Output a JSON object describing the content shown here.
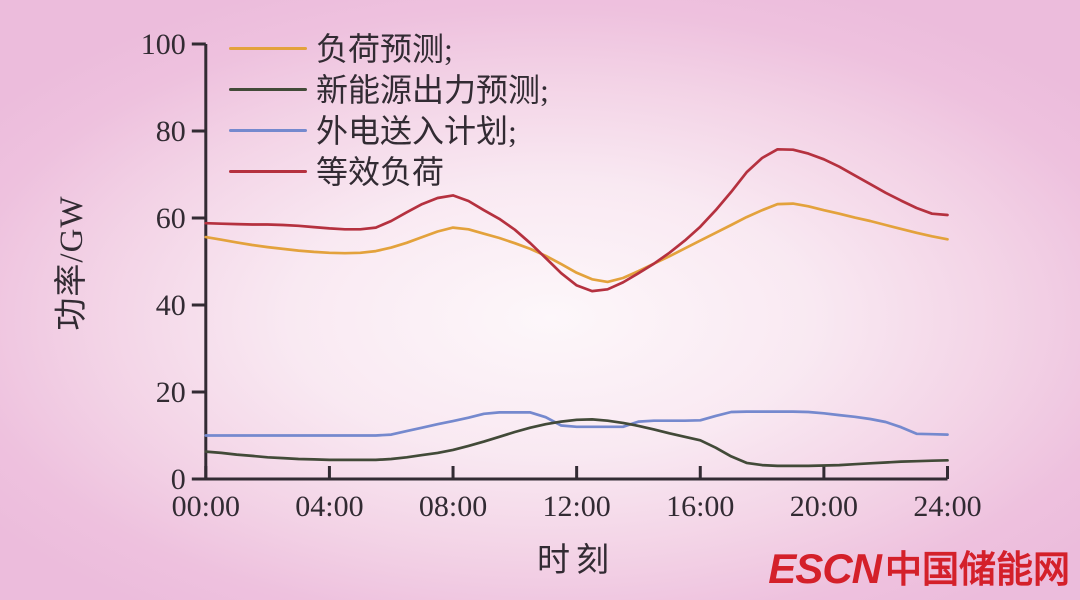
{
  "logo": {
    "latin": "ESCN",
    "cjk": "中国储能网",
    "color": "#d4202a"
  },
  "colors": {
    "background_edge": "#ecbcdc",
    "background_center": "#fdf7fa",
    "axis": "#322b33",
    "text": "#322b33"
  },
  "chart_data": {
    "type": "line",
    "title": "",
    "xlabel": "时刻",
    "ylabel": "功率/GW",
    "xlim": [
      0,
      24
    ],
    "ylim": [
      0,
      100
    ],
    "grid": false,
    "legend_position": "upper-left-inside",
    "yticks": [
      0,
      20,
      40,
      60,
      80,
      100
    ],
    "xticks": [
      {
        "t": 0,
        "label": "00:00"
      },
      {
        "t": 4,
        "label": "04:00"
      },
      {
        "t": 8,
        "label": "08:00"
      },
      {
        "t": 12,
        "label": "12:00"
      },
      {
        "t": 16,
        "label": "16:00"
      },
      {
        "t": 20,
        "label": "20:00"
      },
      {
        "t": 24,
        "label": "24:00"
      }
    ],
    "x_hours": [
      0,
      0.5,
      1,
      1.5,
      2,
      2.5,
      3,
      3.5,
      4,
      4.5,
      5,
      5.5,
      6,
      6.5,
      7,
      7.5,
      8,
      8.5,
      9,
      9.5,
      10,
      10.5,
      11,
      11.5,
      12,
      12.5,
      13,
      13.5,
      14,
      14.5,
      15,
      15.5,
      16,
      16.5,
      17,
      17.5,
      18,
      18.5,
      19,
      19.5,
      20,
      20.5,
      21,
      21.5,
      22,
      22.5,
      23,
      23.5,
      24
    ],
    "z_order": [
      0,
      2,
      1,
      3
    ],
    "series": [
      {
        "name": "load-forecast",
        "label": "负荷预测;",
        "color": "#e3a23c",
        "values": [
          55.6,
          55.0,
          54.4,
          53.8,
          53.3,
          52.9,
          52.5,
          52.2,
          52.0,
          51.9,
          52.0,
          52.4,
          53.2,
          54.3,
          55.6,
          56.9,
          57.8,
          57.4,
          56.4,
          55.4,
          54.2,
          52.9,
          51.3,
          49.4,
          47.4,
          45.9,
          45.3,
          46.2,
          47.8,
          49.5,
          51.2,
          53.0,
          54.8,
          56.6,
          58.4,
          60.2,
          61.8,
          63.2,
          63.3,
          62.7,
          61.8,
          61.0,
          60.1,
          59.3,
          58.4,
          57.5,
          56.6,
          55.8,
          55.1
        ]
      },
      {
        "name": "renewable-output-forecast",
        "label": "新能源出力预测;",
        "color": "#424a38",
        "values": [
          6.3,
          6.0,
          5.6,
          5.3,
          5.0,
          4.8,
          4.6,
          4.5,
          4.4,
          4.4,
          4.4,
          4.4,
          4.6,
          5.0,
          5.5,
          6.0,
          6.7,
          7.6,
          8.6,
          9.7,
          10.8,
          11.8,
          12.6,
          13.2,
          13.6,
          13.7,
          13.4,
          12.9,
          12.2,
          11.4,
          10.5,
          9.7,
          8.9,
          7.2,
          5.2,
          3.7,
          3.2,
          3.0,
          3.0,
          3.0,
          3.1,
          3.2,
          3.4,
          3.6,
          3.8,
          4.0,
          4.1,
          4.2,
          4.3
        ]
      },
      {
        "name": "external-power-import-plan",
        "label": "外电送入计划;",
        "color": "#7589ce",
        "values": [
          10.0,
          10.0,
          10.0,
          10.0,
          10.0,
          10.0,
          10.0,
          10.0,
          10.0,
          10.0,
          10.0,
          10.0,
          10.2,
          11.0,
          11.8,
          12.6,
          13.3,
          14.1,
          15.0,
          15.3,
          15.3,
          15.3,
          14.2,
          12.3,
          12.0,
          12.0,
          12.0,
          12.0,
          13.2,
          13.4,
          13.4,
          13.4,
          13.5,
          14.5,
          15.4,
          15.5,
          15.5,
          15.5,
          15.5,
          15.4,
          15.1,
          14.7,
          14.3,
          13.8,
          13.1,
          11.9,
          10.4,
          10.3,
          10.2
        ]
      },
      {
        "name": "equivalent-load",
        "label": "等效负荷",
        "color": "#b5313f",
        "values": [
          58.8,
          58.7,
          58.6,
          58.5,
          58.5,
          58.4,
          58.2,
          57.9,
          57.6,
          57.4,
          57.4,
          57.8,
          59.3,
          61.3,
          63.2,
          64.6,
          65.2,
          63.9,
          61.8,
          59.8,
          57.3,
          54.2,
          50.8,
          47.3,
          44.5,
          43.2,
          43.6,
          45.2,
          47.3,
          49.5,
          52.0,
          54.8,
          58.0,
          61.8,
          66.0,
          70.5,
          73.8,
          75.8,
          75.7,
          74.8,
          73.5,
          71.8,
          69.8,
          67.8,
          65.8,
          64.0,
          62.3,
          61.0,
          60.7
        ]
      }
    ]
  }
}
